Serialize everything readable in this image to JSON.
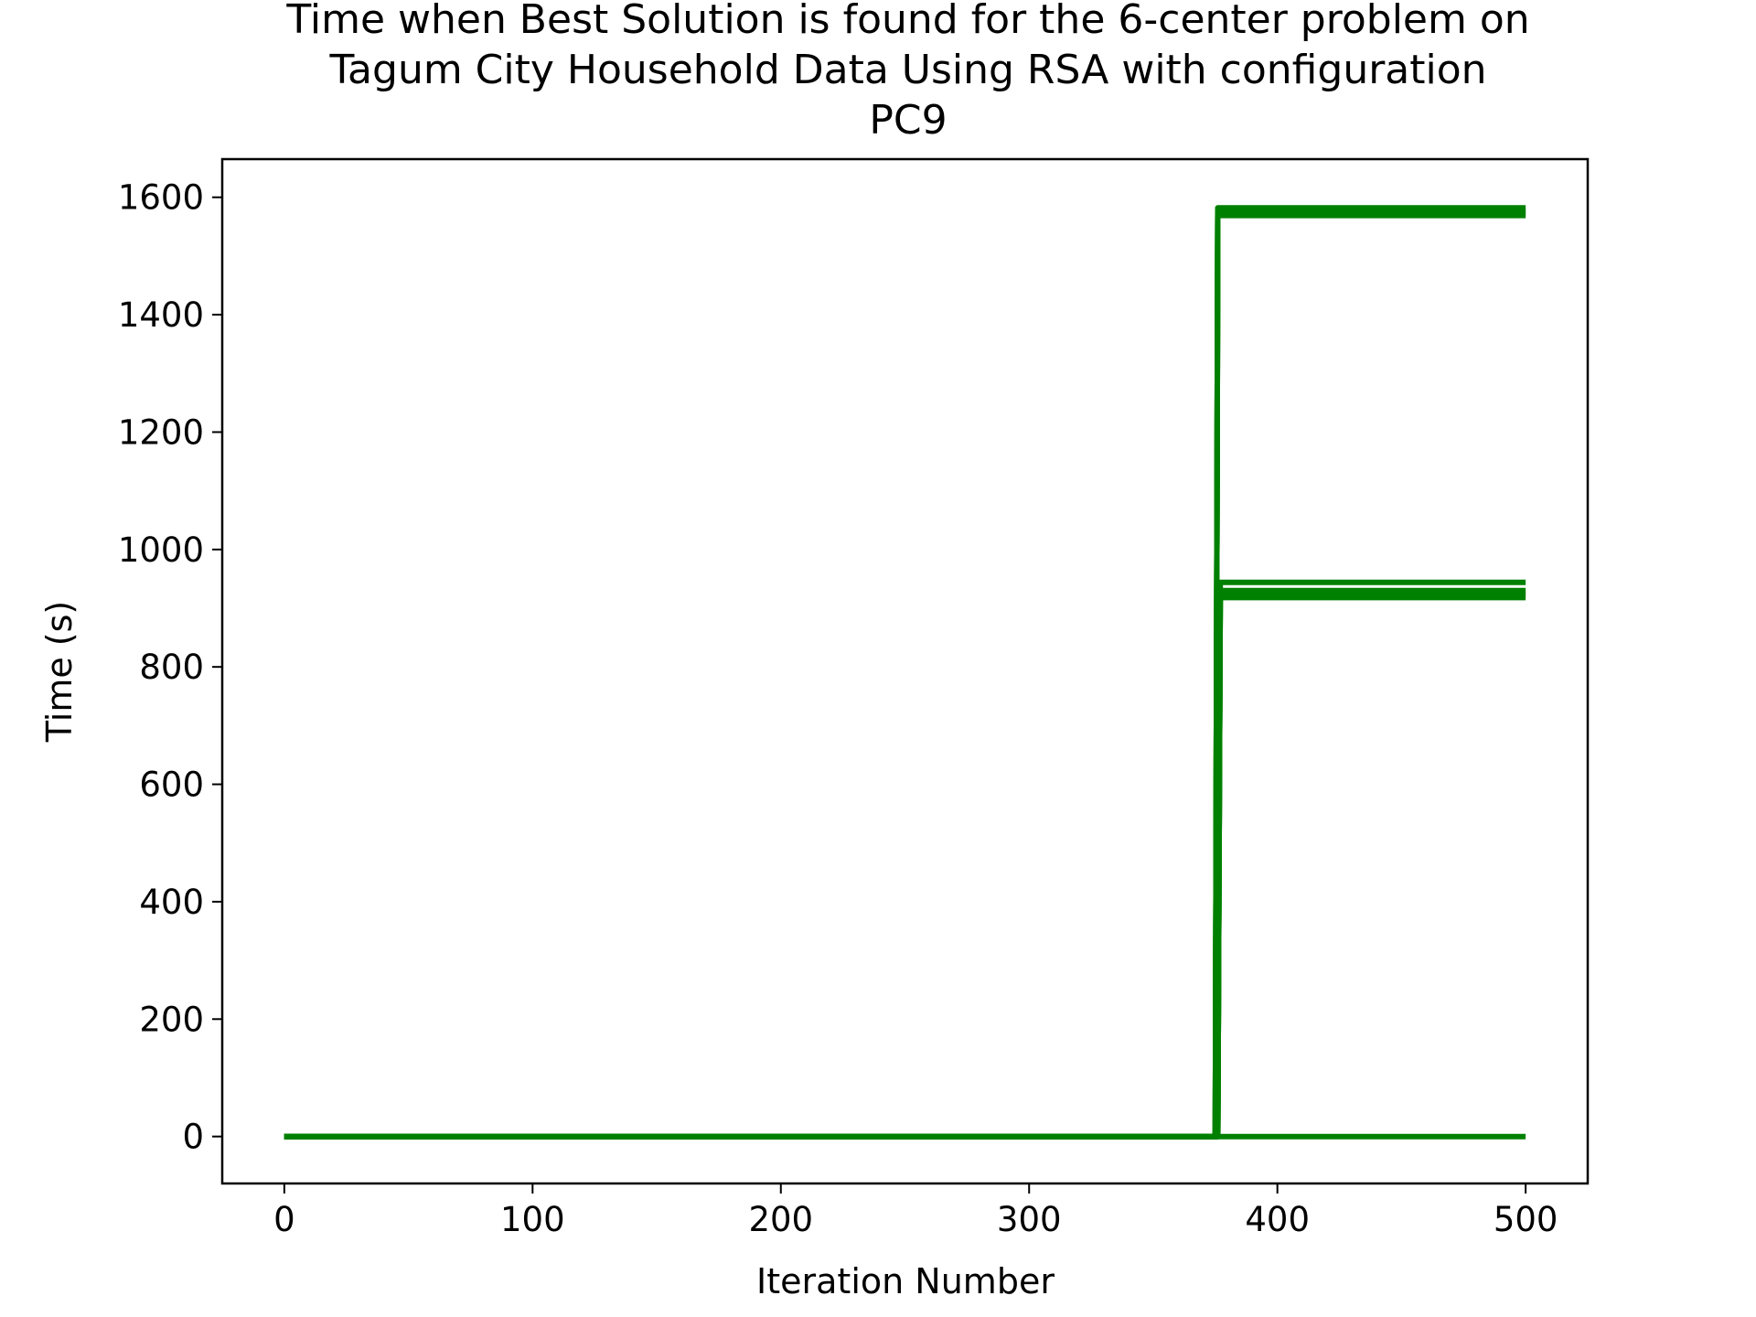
{
  "chart_data": {
    "type": "line",
    "title_lines": [
      "Time when Best Solution is found for the 6-center problem on",
      "Tagum City Household Data Using RSA with configuration",
      "PC9"
    ],
    "xlabel": "Iteration Number",
    "ylabel": "Time (s)",
    "xlim": [
      -25,
      525
    ],
    "ylim": [
      -80,
      1665
    ],
    "xticks": [
      0,
      100,
      200,
      300,
      400,
      500
    ],
    "yticks": [
      0,
      200,
      400,
      600,
      800,
      1000,
      1200,
      1400,
      1600
    ],
    "grid": false,
    "legend": "none",
    "line_color": "#008000",
    "series": [
      {
        "x": [
          0,
          375,
          376,
          500
        ],
        "y": [
          0,
          0,
          1582,
          1582
        ]
      },
      {
        "x": [
          0,
          375,
          376,
          500
        ],
        "y": [
          0,
          0,
          1578,
          1578
        ]
      },
      {
        "x": [
          0,
          375,
          376,
          500
        ],
        "y": [
          0,
          0,
          1575,
          1575
        ]
      },
      {
        "x": [
          0,
          375,
          376,
          500
        ],
        "y": [
          0,
          0,
          1572,
          1572
        ]
      },
      {
        "x": [
          0,
          375,
          376,
          500
        ],
        "y": [
          0,
          0,
          1569,
          1569
        ]
      },
      {
        "x": [
          0,
          376,
          377,
          500
        ],
        "y": [
          0,
          0,
          944,
          944
        ]
      },
      {
        "x": [
          0,
          376,
          377,
          500
        ],
        "y": [
          0,
          0,
          930,
          930
        ]
      },
      {
        "x": [
          0,
          376,
          377,
          500
        ],
        "y": [
          0,
          0,
          926,
          926
        ]
      },
      {
        "x": [
          0,
          376,
          377,
          500
        ],
        "y": [
          0,
          0,
          922,
          922
        ]
      },
      {
        "x": [
          0,
          376,
          377,
          500
        ],
        "y": [
          0,
          0,
          918,
          918
        ]
      },
      {
        "x": [
          0,
          500
        ],
        "y": [
          0,
          0
        ]
      }
    ]
  }
}
